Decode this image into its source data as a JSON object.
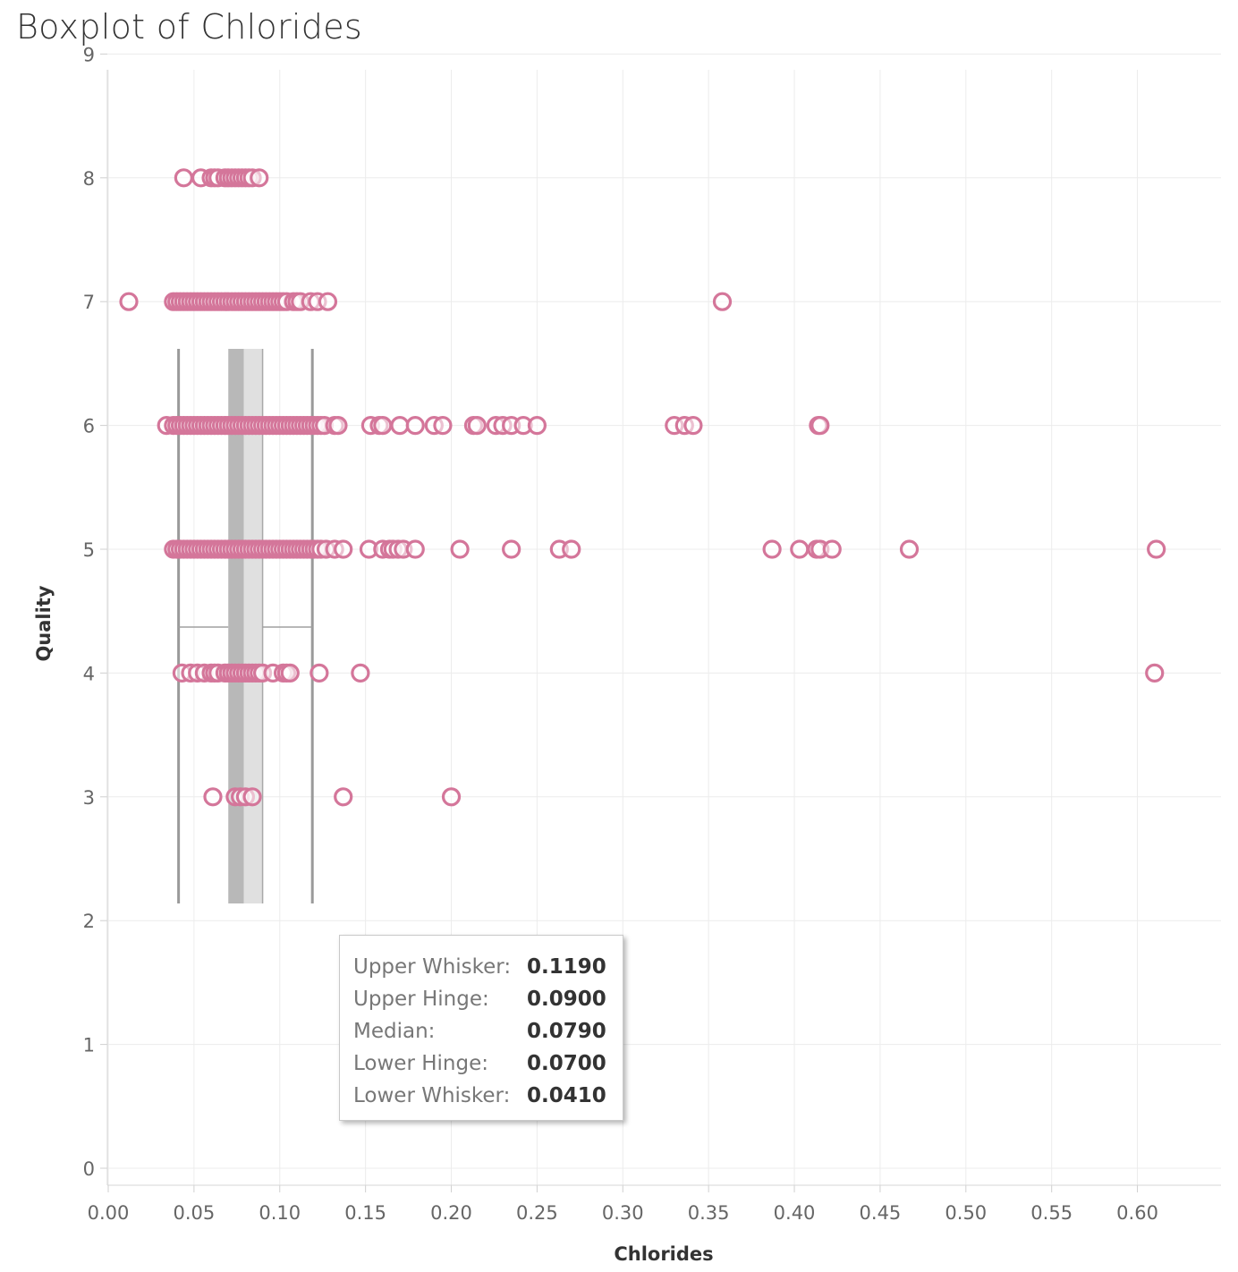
{
  "chart_data": {
    "type": "scatter",
    "title": "Boxplot of Chlorides",
    "xlabel": "Chlorides",
    "ylabel": "Quality",
    "xlim": [
      0.0,
      0.64
    ],
    "ylim": [
      0,
      9
    ],
    "x_ticks": [
      "0.00",
      "0.05",
      "0.10",
      "0.15",
      "0.20",
      "0.25",
      "0.30",
      "0.35",
      "0.40",
      "0.45",
      "0.50",
      "0.55",
      "0.60"
    ],
    "y_ticks": [
      "0",
      "1",
      "2",
      "3",
      "4",
      "5",
      "6",
      "7",
      "8",
      "9"
    ],
    "grid": true,
    "marker_color": "#d4769a",
    "box_color_lower": "#b8b8b8",
    "box_color_upper": "#e0e0e0",
    "whisker_color": "#9a9a9a",
    "boxplot": {
      "upper_whisker": 0.119,
      "upper_hinge": 0.09,
      "median": 0.079,
      "lower_hinge": 0.07,
      "lower_whisker": 0.041
    },
    "series": [
      {
        "quality": 8,
        "x": [
          0.044,
          0.054,
          0.06,
          0.062,
          0.064,
          0.068,
          0.07,
          0.072,
          0.074,
          0.076,
          0.078,
          0.08,
          0.082,
          0.084,
          0.088
        ]
      },
      {
        "quality": 7,
        "x": [
          0.012,
          0.038,
          0.04,
          0.042,
          0.044,
          0.046,
          0.048,
          0.05,
          0.052,
          0.054,
          0.056,
          0.058,
          0.06,
          0.062,
          0.064,
          0.066,
          0.068,
          0.07,
          0.072,
          0.074,
          0.076,
          0.078,
          0.08,
          0.082,
          0.084,
          0.086,
          0.088,
          0.09,
          0.092,
          0.094,
          0.096,
          0.098,
          0.1,
          0.102,
          0.104,
          0.108,
          0.11,
          0.112,
          0.118,
          0.122,
          0.128,
          0.358
        ]
      },
      {
        "quality": 6,
        "x": [
          0.034,
          0.038,
          0.04,
          0.042,
          0.044,
          0.046,
          0.048,
          0.05,
          0.052,
          0.054,
          0.056,
          0.058,
          0.06,
          0.062,
          0.064,
          0.066,
          0.068,
          0.07,
          0.072,
          0.074,
          0.076,
          0.078,
          0.08,
          0.082,
          0.084,
          0.086,
          0.088,
          0.09,
          0.092,
          0.094,
          0.096,
          0.098,
          0.1,
          0.102,
          0.104,
          0.106,
          0.108,
          0.11,
          0.112,
          0.114,
          0.116,
          0.118,
          0.12,
          0.122,
          0.124,
          0.126,
          0.132,
          0.134,
          0.153,
          0.158,
          0.16,
          0.17,
          0.179,
          0.19,
          0.195,
          0.213,
          0.215,
          0.226,
          0.23,
          0.235,
          0.242,
          0.25,
          0.33,
          0.336,
          0.341,
          0.414,
          0.415
        ]
      },
      {
        "quality": 5,
        "x": [
          0.038,
          0.04,
          0.042,
          0.044,
          0.046,
          0.048,
          0.05,
          0.052,
          0.054,
          0.056,
          0.058,
          0.06,
          0.062,
          0.064,
          0.066,
          0.068,
          0.07,
          0.072,
          0.074,
          0.076,
          0.078,
          0.08,
          0.082,
          0.084,
          0.086,
          0.088,
          0.09,
          0.092,
          0.094,
          0.096,
          0.098,
          0.1,
          0.102,
          0.104,
          0.106,
          0.108,
          0.11,
          0.112,
          0.114,
          0.116,
          0.118,
          0.12,
          0.122,
          0.124,
          0.127,
          0.132,
          0.137,
          0.152,
          0.16,
          0.164,
          0.166,
          0.169,
          0.172,
          0.179,
          0.205,
          0.235,
          0.263,
          0.27,
          0.387,
          0.403,
          0.413,
          0.415,
          0.422,
          0.467,
          0.611
        ]
      },
      {
        "quality": 4,
        "x": [
          0.043,
          0.048,
          0.052,
          0.056,
          0.06,
          0.062,
          0.064,
          0.068,
          0.07,
          0.072,
          0.074,
          0.076,
          0.078,
          0.08,
          0.082,
          0.084,
          0.086,
          0.088,
          0.09,
          0.096,
          0.102,
          0.104,
          0.106,
          0.123,
          0.147,
          0.61
        ]
      },
      {
        "quality": 3,
        "x": [
          0.061,
          0.074,
          0.077,
          0.08,
          0.084,
          0.137,
          0.2
        ]
      }
    ]
  },
  "tooltip": {
    "rows": [
      {
        "label": "Upper Whisker:",
        "value": "0.1190"
      },
      {
        "label": "Upper Hinge:",
        "value": "0.0900"
      },
      {
        "label": "Median:",
        "value": "0.0790"
      },
      {
        "label": "Lower Hinge:",
        "value": "0.0700"
      },
      {
        "label": "Lower Whisker:",
        "value": "0.0410"
      }
    ]
  }
}
